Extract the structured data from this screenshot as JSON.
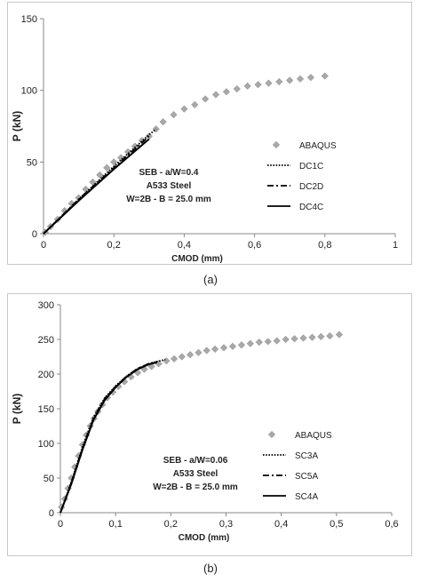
{
  "chart_data": [
    {
      "type": "scatter",
      "panel_label": "(a)",
      "xlabel": "CMOD (mm)",
      "ylabel": "P (kN)",
      "xlim": [
        0,
        1
      ],
      "ylim": [
        0,
        150
      ],
      "xticks": [
        0,
        0.2,
        0.4,
        0.6,
        0.8,
        1
      ],
      "xtick_labels": [
        "0",
        "0,2",
        "0,4",
        "0,6",
        "0,8",
        "1"
      ],
      "yticks": [
        0,
        50,
        100,
        150
      ],
      "ytick_labels": [
        "0",
        "50",
        "100",
        "150"
      ],
      "grid": false,
      "legend_position": "right",
      "annotation": [
        "SEB - a/W=0.4",
        "A533 Steel",
        "W=2B  -  B = 25.0 mm"
      ],
      "series": [
        {
          "name": "ABAQUS",
          "style": "diamond",
          "color": "#a8a8a8",
          "x": [
            0.005,
            0.02,
            0.04,
            0.06,
            0.08,
            0.1,
            0.12,
            0.14,
            0.16,
            0.18,
            0.2,
            0.22,
            0.24,
            0.26,
            0.28,
            0.3,
            0.32,
            0.34,
            0.37,
            0.4,
            0.43,
            0.46,
            0.49,
            0.52,
            0.55,
            0.58,
            0.61,
            0.64,
            0.67,
            0.7,
            0.73,
            0.76,
            0.8
          ],
          "y": [
            1,
            5,
            10,
            16,
            21,
            25,
            31,
            36,
            41,
            46,
            50,
            53,
            57,
            61,
            65,
            68,
            73,
            78,
            83,
            87,
            90,
            94,
            97,
            99,
            101,
            103,
            104,
            105,
            106,
            107,
            108,
            109,
            110
          ]
        },
        {
          "name": "DC1C",
          "style": "dotted",
          "color": "#000000",
          "x": [
            0,
            0.1,
            0.2,
            0.3,
            0.32
          ],
          "y": [
            0,
            24,
            47,
            69,
            73
          ]
        },
        {
          "name": "DC2D",
          "style": "dashdot",
          "color": "#000000",
          "x": [
            0,
            0.1,
            0.2,
            0.3
          ],
          "y": [
            0,
            24,
            46,
            68
          ]
        },
        {
          "name": "DC4C",
          "style": "solid",
          "color": "#000000",
          "x": [
            0,
            0.1,
            0.2,
            0.3
          ],
          "y": [
            0,
            23,
            45,
            66
          ]
        }
      ]
    },
    {
      "type": "scatter",
      "panel_label": "(b)",
      "xlabel": "CMOD (mm)",
      "ylabel": "P (kN)",
      "xlim": [
        0,
        0.6
      ],
      "ylim": [
        0,
        300
      ],
      "xticks": [
        0,
        0.1,
        0.2,
        0.3,
        0.4,
        0.5,
        0.6
      ],
      "xtick_labels": [
        "0",
        "0,1",
        "0,2",
        "0,3",
        "0,4",
        "0,5",
        "0,6"
      ],
      "yticks": [
        0,
        50,
        100,
        150,
        200,
        250,
        300
      ],
      "ytick_labels": [
        "0",
        "50",
        "100",
        "150",
        "200",
        "250",
        "300"
      ],
      "grid": false,
      "legend_position": "right",
      "annotation": [
        "SEB - a/W=0.06",
        "A533 Steel",
        "W=2B  -  B = 25.0 mm"
      ],
      "series": [
        {
          "name": "ABAQUS",
          "style": "diamond",
          "color": "#a8a8a8",
          "x": [
            0.002,
            0.008,
            0.014,
            0.02,
            0.026,
            0.033,
            0.04,
            0.047,
            0.054,
            0.061,
            0.068,
            0.076,
            0.085,
            0.095,
            0.105,
            0.116,
            0.128,
            0.14,
            0.152,
            0.165,
            0.178,
            0.192,
            0.206,
            0.22,
            0.235,
            0.25,
            0.265,
            0.28,
            0.296,
            0.312,
            0.328,
            0.344,
            0.36,
            0.376,
            0.392,
            0.408,
            0.424,
            0.44,
            0.456,
            0.472,
            0.488,
            0.505
          ],
          "y": [
            8,
            20,
            35,
            50,
            66,
            82,
            98,
            112,
            125,
            136,
            146,
            156,
            166,
            174,
            182,
            189,
            196,
            202,
            207,
            211,
            215,
            219,
            222,
            225,
            228,
            231,
            234,
            236,
            238,
            240,
            242,
            244,
            246,
            247,
            248,
            250,
            251,
            252,
            253,
            254,
            255,
            257
          ]
        },
        {
          "name": "SC3A",
          "style": "dotted",
          "color": "#000000",
          "x": [
            0,
            0.02,
            0.04,
            0.06,
            0.08,
            0.1,
            0.12,
            0.14,
            0.16,
            0.18,
            0.19
          ],
          "y": [
            0,
            45,
            95,
            138,
            165,
            183,
            197,
            208,
            215,
            219,
            221
          ]
        },
        {
          "name": "SC5A",
          "style": "dashdot",
          "color": "#000000",
          "x": [
            0,
            0.02,
            0.04,
            0.06,
            0.08,
            0.1,
            0.12,
            0.14,
            0.16,
            0.175
          ],
          "y": [
            0,
            44,
            93,
            136,
            164,
            182,
            197,
            208,
            215,
            218
          ]
        },
        {
          "name": "SC4A",
          "style": "solid",
          "color": "#000000",
          "x": [
            0,
            0.02,
            0.04,
            0.06,
            0.08,
            0.1,
            0.12,
            0.14,
            0.16,
            0.175
          ],
          "y": [
            0,
            42,
            91,
            134,
            162,
            181,
            196,
            207,
            214,
            217
          ]
        }
      ]
    }
  ]
}
